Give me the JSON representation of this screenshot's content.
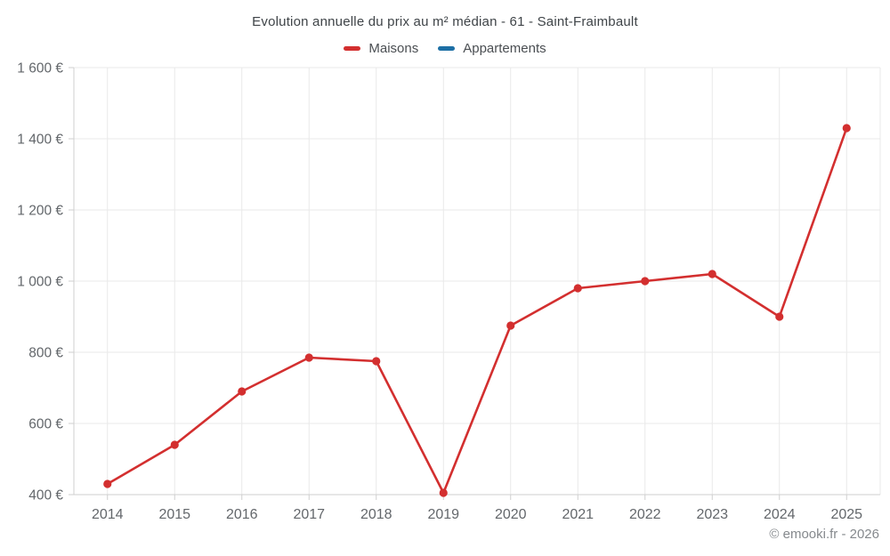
{
  "chart_data": {
    "type": "line",
    "title": "Evolution annuelle du prix au m² médian - 61 - Saint-Fraimbault",
    "categories": [
      "2014",
      "2015",
      "2016",
      "2017",
      "2018",
      "2019",
      "2020",
      "2021",
      "2022",
      "2023",
      "2024",
      "2025"
    ],
    "series": [
      {
        "name": "Maisons",
        "color": "#d32f2f",
        "values": [
          430,
          540,
          690,
          785,
          775,
          405,
          875,
          980,
          1000,
          1020,
          900,
          1430
        ]
      },
      {
        "name": "Appartements",
        "color": "#1d6fa5",
        "values": []
      }
    ],
    "xlabel": "",
    "ylabel": "",
    "ylim": [
      400,
      1600
    ],
    "y_ticks": [
      {
        "value": 400,
        "label": "400 €"
      },
      {
        "value": 600,
        "label": "600 €"
      },
      {
        "value": 800,
        "label": "800 €"
      },
      {
        "value": 1000,
        "label": "1 000 €"
      },
      {
        "value": 1200,
        "label": "1 200 €"
      },
      {
        "value": 1400,
        "label": "1 400 €"
      },
      {
        "value": 1600,
        "label": "1 600 €"
      }
    ],
    "grid": true,
    "legend_position": "top",
    "grid_color": "#e9e9e9",
    "axis_color": "#cfcfcf",
    "tick_label_color": "#63676b"
  },
  "footer": {
    "credit": "© emooki.fr - 2026"
  }
}
